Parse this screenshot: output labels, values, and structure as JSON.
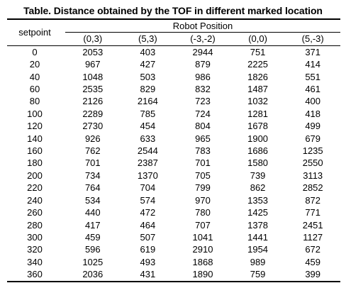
{
  "caption": "Table. Distance obtained by the TOF in different marked location",
  "table": {
    "row_header": "setpoint",
    "group_header": "Robot Position",
    "columns": [
      "(0,3)",
      "(5,3)",
      "(-3,-2)",
      "(0,0)",
      "(5,-3)"
    ],
    "rows": [
      {
        "setpoint": "0",
        "values": [
          "2053",
          "403",
          "2944",
          "751",
          "371"
        ]
      },
      {
        "setpoint": "20",
        "values": [
          "967",
          "427",
          "879",
          "2225",
          "414"
        ]
      },
      {
        "setpoint": "40",
        "values": [
          "1048",
          "503",
          "986",
          "1826",
          "551"
        ]
      },
      {
        "setpoint": "60",
        "values": [
          "2535",
          "829",
          "832",
          "1487",
          "461"
        ]
      },
      {
        "setpoint": "80",
        "values": [
          "2126",
          "2164",
          "723",
          "1032",
          "400"
        ]
      },
      {
        "setpoint": "100",
        "values": [
          "2289",
          "785",
          "724",
          "1281",
          "418"
        ]
      },
      {
        "setpoint": "120",
        "values": [
          "2730",
          "454",
          "804",
          "1678",
          "499"
        ]
      },
      {
        "setpoint": "140",
        "values": [
          "926",
          "633",
          "965",
          "1900",
          "679"
        ]
      },
      {
        "setpoint": "160",
        "values": [
          "762",
          "2544",
          "783",
          "1686",
          "1235"
        ]
      },
      {
        "setpoint": "180",
        "values": [
          "701",
          "2387",
          "701",
          "1580",
          "2550"
        ]
      },
      {
        "setpoint": "200",
        "values": [
          "734",
          "1370",
          "705",
          "739",
          "3113"
        ]
      },
      {
        "setpoint": "220",
        "values": [
          "764",
          "704",
          "799",
          "862",
          "2852"
        ]
      },
      {
        "setpoint": "240",
        "values": [
          "534",
          "574",
          "970",
          "1353",
          "872"
        ]
      },
      {
        "setpoint": "260",
        "values": [
          "440",
          "472",
          "780",
          "1425",
          "771"
        ]
      },
      {
        "setpoint": "280",
        "values": [
          "417",
          "464",
          "707",
          "1378",
          "2451"
        ]
      },
      {
        "setpoint": "300",
        "values": [
          "459",
          "507",
          "1041",
          "1441",
          "1127"
        ]
      },
      {
        "setpoint": "320",
        "values": [
          "596",
          "619",
          "2910",
          "1954",
          "672"
        ]
      },
      {
        "setpoint": "340",
        "values": [
          "1025",
          "493",
          "1868",
          "989",
          "459"
        ]
      },
      {
        "setpoint": "360",
        "values": [
          "2036",
          "431",
          "1890",
          "759",
          "399"
        ]
      }
    ]
  }
}
